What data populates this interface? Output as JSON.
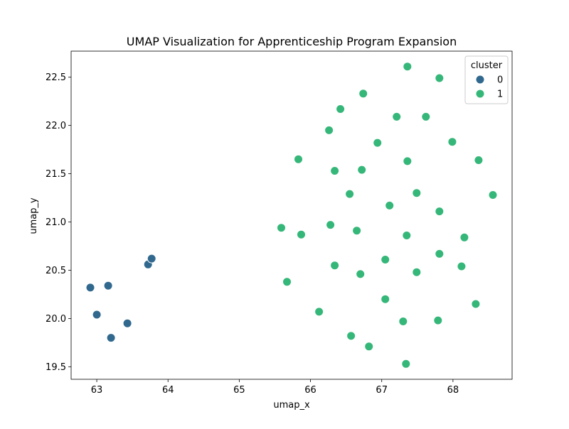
{
  "chart_data": {
    "type": "scatter",
    "title": "UMAP Visualization for Apprenticeship Program Expansion",
    "xlabel": "umap_x",
    "ylabel": "umap_y",
    "xlim": [
      62.64,
      68.83
    ],
    "ylim": [
      19.37,
      22.77
    ],
    "xticks": [
      63,
      64,
      65,
      66,
      67,
      68
    ],
    "xtick_labels": [
      "63",
      "64",
      "65",
      "66",
      "67",
      "68"
    ],
    "yticks": [
      19.5,
      20.0,
      20.5,
      21.0,
      21.5,
      22.0,
      22.5
    ],
    "ytick_labels": [
      "19.5",
      "20.0",
      "20.5",
      "21.0",
      "21.5",
      "22.0",
      "22.5"
    ],
    "grid": false,
    "legend": {
      "title": "cluster",
      "position": "top-right",
      "entries": [
        {
          "label": "0",
          "color": "#31688e"
        },
        {
          "label": "1",
          "color": "#35b779"
        }
      ]
    },
    "series": [
      {
        "name": "0",
        "color": "#31688e",
        "points": [
          [
            62.91,
            20.32
          ],
          [
            63.0,
            20.04
          ],
          [
            63.16,
            20.34
          ],
          [
            63.2,
            19.8
          ],
          [
            63.43,
            19.95
          ],
          [
            63.72,
            20.56
          ],
          [
            63.77,
            20.62
          ]
        ]
      },
      {
        "name": "1",
        "color": "#35b779",
        "points": [
          [
            67.36,
            22.61
          ],
          [
            67.81,
            22.49
          ],
          [
            66.74,
            22.33
          ],
          [
            66.42,
            22.17
          ],
          [
            67.21,
            22.09
          ],
          [
            67.62,
            22.09
          ],
          [
            66.26,
            21.95
          ],
          [
            66.94,
            21.82
          ],
          [
            67.99,
            21.83
          ],
          [
            65.83,
            21.65
          ],
          [
            67.36,
            21.63
          ],
          [
            68.36,
            21.64
          ],
          [
            66.34,
            21.53
          ],
          [
            66.72,
            21.54
          ],
          [
            66.55,
            21.29
          ],
          [
            67.49,
            21.3
          ],
          [
            68.56,
            21.28
          ],
          [
            67.11,
            21.17
          ],
          [
            67.81,
            21.11
          ],
          [
            65.59,
            20.94
          ],
          [
            66.28,
            20.97
          ],
          [
            66.65,
            20.91
          ],
          [
            65.87,
            20.87
          ],
          [
            67.35,
            20.86
          ],
          [
            68.16,
            20.84
          ],
          [
            67.81,
            20.67
          ],
          [
            67.05,
            20.61
          ],
          [
            66.34,
            20.55
          ],
          [
            68.12,
            20.54
          ],
          [
            66.7,
            20.46
          ],
          [
            67.49,
            20.48
          ],
          [
            65.67,
            20.38
          ],
          [
            67.05,
            20.2
          ],
          [
            68.32,
            20.15
          ],
          [
            66.12,
            20.07
          ],
          [
            67.3,
            19.97
          ],
          [
            67.79,
            19.98
          ],
          [
            66.57,
            19.82
          ],
          [
            66.82,
            19.71
          ],
          [
            67.34,
            19.53
          ]
        ]
      }
    ]
  }
}
